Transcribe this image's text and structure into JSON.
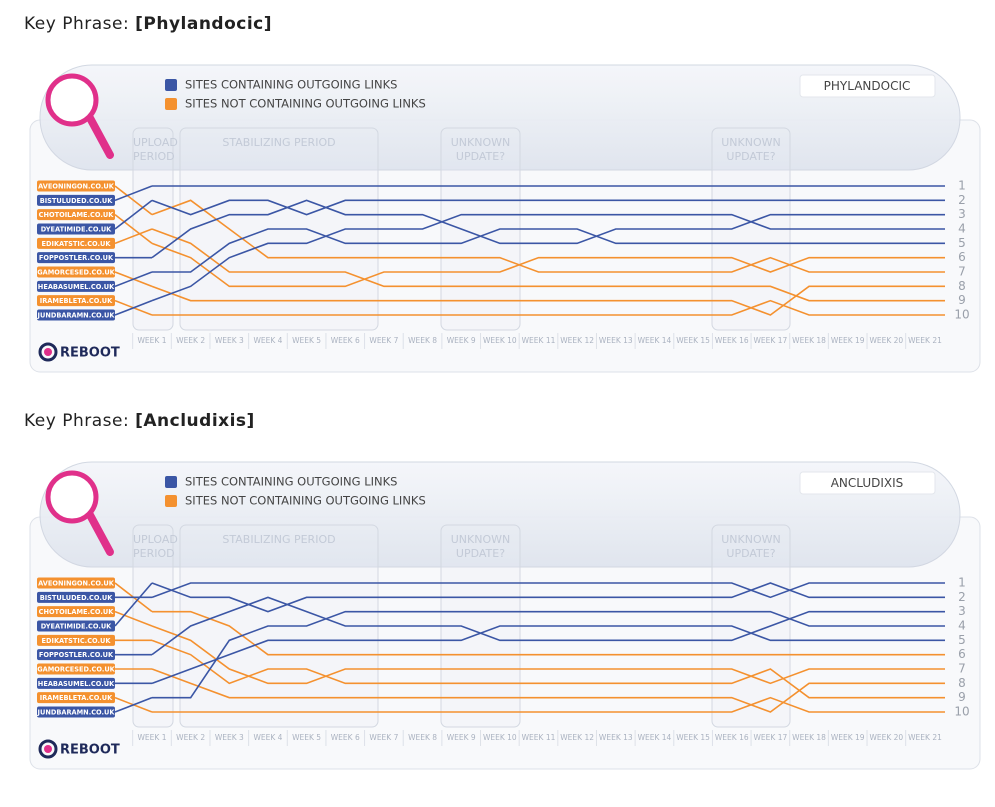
{
  "chart_data": [
    {
      "type": "line",
      "heading_label": "Key Phrase:",
      "title": "[Phylandocic]",
      "badge": "PHYLANDOCIC",
      "logo": "REBOOT",
      "legend": [
        {
          "label": "SITES CONTAINING OUTGOING LINKS",
          "color": "#3b56a5"
        },
        {
          "label": "SITES NOT CONTAINING OUTGOING LINKS",
          "color": "#f4912f"
        }
      ],
      "annotations": [
        "UPLOAD PERIOD",
        "STABILIZING PERIOD",
        "UNKNOWN UPDATE?",
        "UNKNOWN UPDATE?"
      ],
      "categories": [
        "WEEK 1",
        "WEEK 2",
        "WEEK 3",
        "WEEK 4",
        "WEEK 5",
        "WEEK 6",
        "WEEK 7",
        "WEEK 8",
        "WEEK 9",
        "WEEK 10",
        "WEEK 11",
        "WEEK 12",
        "WEEK 13",
        "WEEK 14",
        "WEEK 15",
        "WEEK 16",
        "WEEK 17",
        "WEEK 18",
        "WEEK 19",
        "WEEK 20",
        "WEEK 21"
      ],
      "ylim": [
        1,
        10
      ],
      "y_inverted": true,
      "yticks": [
        1,
        2,
        3,
        4,
        5,
        6,
        7,
        8,
        9,
        10
      ],
      "series": [
        {
          "name": "AVEONINGON.CO.UK",
          "color": "#f4912f",
          "values": [
            3,
            2,
            4,
            6,
            6,
            6,
            6,
            6,
            6,
            6,
            7,
            7,
            7,
            7,
            7,
            7,
            6,
            7,
            7,
            7,
            7
          ]
        },
        {
          "name": "BISTULUDED.CO.UK",
          "color": "#3b56a5",
          "values": [
            1,
            1,
            1,
            1,
            1,
            1,
            1,
            1,
            1,
            1,
            1,
            1,
            1,
            1,
            1,
            1,
            1,
            1,
            1,
            1,
            1
          ]
        },
        {
          "name": "CHOTOILAME.CO.UK",
          "color": "#f4912f",
          "values": [
            5,
            6,
            8,
            8,
            8,
            8,
            7,
            7,
            7,
            7,
            6,
            6,
            6,
            6,
            6,
            6,
            7,
            6,
            6,
            6,
            6
          ]
        },
        {
          "name": "DYEATIMIDE.CO.UK",
          "color": "#3b56a5",
          "values": [
            2,
            3,
            2,
            2,
            3,
            2,
            2,
            2,
            2,
            2,
            2,
            2,
            2,
            2,
            2,
            2,
            2,
            2,
            2,
            2,
            2
          ]
        },
        {
          "name": "EDIKATSTIC.CO.UK",
          "color": "#f4912f",
          "values": [
            4,
            5,
            7,
            7,
            7,
            7,
            8,
            8,
            8,
            8,
            8,
            8,
            8,
            8,
            8,
            8,
            8,
            9,
            9,
            9,
            9
          ]
        },
        {
          "name": "FOPPOSTLER.CO.UK",
          "color": "#3b56a5",
          "values": [
            6,
            4,
            3,
            3,
            2,
            3,
            3,
            3,
            4,
            5,
            5,
            5,
            4,
            4,
            4,
            4,
            3,
            3,
            3,
            3,
            3
          ]
        },
        {
          "name": "GAMORCESED.CO.UK",
          "color": "#f4912f",
          "values": [
            8,
            9,
            9,
            9,
            9,
            9,
            9,
            9,
            9,
            9,
            9,
            9,
            9,
            9,
            9,
            9,
            10,
            8,
            8,
            8,
            8
          ]
        },
        {
          "name": "HEABASUMEL.CO.UK",
          "color": "#3b56a5",
          "values": [
            7,
            7,
            5,
            4,
            4,
            5,
            5,
            5,
            5,
            4,
            4,
            4,
            5,
            5,
            5,
            5,
            5,
            5,
            5,
            5,
            5
          ]
        },
        {
          "name": "IRAMEBLETA.CO.UK",
          "color": "#f4912f",
          "values": [
            10,
            10,
            10,
            10,
            10,
            10,
            10,
            10,
            10,
            10,
            10,
            10,
            10,
            10,
            10,
            10,
            9,
            10,
            10,
            10,
            10
          ]
        },
        {
          "name": "JUNDBARAMN.CO.UK",
          "color": "#3b56a5",
          "values": [
            9,
            8,
            6,
            5,
            5,
            4,
            4,
            4,
            3,
            3,
            3,
            3,
            3,
            3,
            3,
            3,
            4,
            4,
            4,
            4,
            4
          ]
        }
      ]
    },
    {
      "type": "line",
      "heading_label": "Key Phrase:",
      "title": "[Ancludixis]",
      "badge": "ANCLUDIXIS",
      "logo": "REBOOT",
      "legend": [
        {
          "label": "SITES CONTAINING OUTGOING LINKS",
          "color": "#3b56a5"
        },
        {
          "label": "SITES NOT CONTAINING OUTGOING LINKS",
          "color": "#f4912f"
        }
      ],
      "annotations": [
        "UPLOAD PERIOD",
        "STABILIZING PERIOD",
        "UNKNOWN UPDATE?",
        "UNKNOWN UPDATE?"
      ],
      "categories": [
        "WEEK 1",
        "WEEK 2",
        "WEEK 3",
        "WEEK 4",
        "WEEK 5",
        "WEEK 6",
        "WEEK 7",
        "WEEK 8",
        "WEEK 9",
        "WEEK 10",
        "WEEK 11",
        "WEEK 12",
        "WEEK 13",
        "WEEK 14",
        "WEEK 15",
        "WEEK 16",
        "WEEK 17",
        "WEEK 18",
        "WEEK 19",
        "WEEK 20",
        "WEEK 21"
      ],
      "ylim": [
        1,
        10
      ],
      "y_inverted": true,
      "yticks": [
        1,
        2,
        3,
        4,
        5,
        6,
        7,
        8,
        9,
        10
      ],
      "series": [
        {
          "name": "AVEONINGON.CO.UK",
          "color": "#f4912f",
          "values": [
            3,
            3,
            4,
            6,
            6,
            6,
            6,
            6,
            6,
            6,
            6,
            6,
            6,
            6,
            6,
            6,
            6,
            6,
            6,
            6,
            6
          ]
        },
        {
          "name": "BISTULUDED.CO.UK",
          "color": "#3b56a5",
          "values": [
            2,
            1,
            1,
            1,
            1,
            1,
            1,
            1,
            1,
            1,
            1,
            1,
            1,
            1,
            1,
            1,
            2,
            1,
            1,
            1,
            1
          ]
        },
        {
          "name": "CHOTOILAME.CO.UK",
          "color": "#f4912f",
          "values": [
            4,
            5,
            7,
            8,
            8,
            7,
            7,
            7,
            7,
            7,
            7,
            7,
            7,
            7,
            7,
            7,
            8,
            7,
            7,
            7,
            7
          ]
        },
        {
          "name": "DYEATIMIDE.CO.UK",
          "color": "#3b56a5",
          "values": [
            1,
            2,
            2,
            3,
            2,
            2,
            2,
            2,
            2,
            2,
            2,
            2,
            2,
            2,
            2,
            2,
            1,
            2,
            2,
            2,
            2
          ]
        },
        {
          "name": "EDIKATSTIC.CO.UK",
          "color": "#f4912f",
          "values": [
            5,
            6,
            8,
            7,
            7,
            8,
            8,
            8,
            8,
            8,
            8,
            8,
            8,
            8,
            8,
            8,
            7,
            9,
            9,
            9,
            9
          ]
        },
        {
          "name": "FOPPOSTLER.CO.UK",
          "color": "#3b56a5",
          "values": [
            6,
            4,
            3,
            2,
            3,
            4,
            4,
            4,
            4,
            5,
            5,
            5,
            5,
            5,
            5,
            5,
            4,
            3,
            3,
            3,
            3
          ]
        },
        {
          "name": "GAMORCESED.CO.UK",
          "color": "#f4912f",
          "values": [
            7,
            8,
            9,
            9,
            9,
            9,
            9,
            9,
            9,
            9,
            9,
            9,
            9,
            9,
            9,
            9,
            10,
            8,
            8,
            8,
            8
          ]
        },
        {
          "name": "HEABASUMEL.CO.UK",
          "color": "#3b56a5",
          "values": [
            8,
            7,
            6,
            5,
            5,
            5,
            5,
            5,
            5,
            4,
            4,
            4,
            4,
            4,
            4,
            4,
            5,
            5,
            5,
            5,
            5
          ]
        },
        {
          "name": "IRAMEBLETA.CO.UK",
          "color": "#f4912f",
          "values": [
            10,
            10,
            10,
            10,
            10,
            10,
            10,
            10,
            10,
            10,
            10,
            10,
            10,
            10,
            10,
            10,
            9,
            10,
            10,
            10,
            10
          ]
        },
        {
          "name": "JUNDBARAMN.CO.UK",
          "color": "#3b56a5",
          "values": [
            9,
            9,
            5,
            4,
            4,
            3,
            3,
            3,
            3,
            3,
            3,
            3,
            3,
            3,
            3,
            3,
            3,
            4,
            4,
            4,
            4
          ]
        }
      ]
    }
  ]
}
